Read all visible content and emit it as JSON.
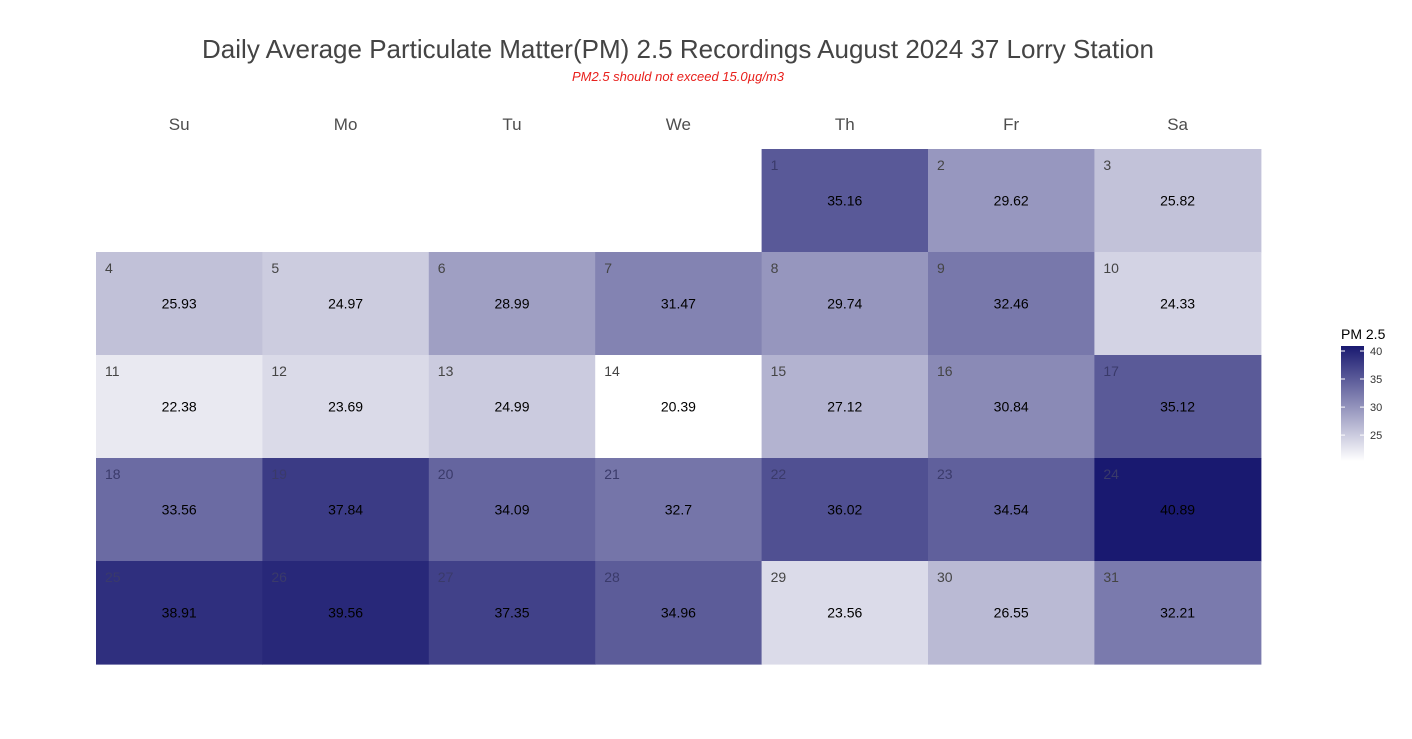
{
  "chart_data": {
    "type": "heatmap",
    "title": "Daily Average Particulate Matter(PM) 2.5 Recordings August 2024 37 Lorry Station",
    "subtitle": "PM2.5 should not exceed 15.0µg/m3",
    "weekdays": [
      "Su",
      "Mo",
      "Tu",
      "We",
      "Th",
      "Fr",
      "Sa"
    ],
    "first_weekday_index": 4,
    "days": [
      1,
      2,
      3,
      4,
      5,
      6,
      7,
      8,
      9,
      10,
      11,
      12,
      13,
      14,
      15,
      16,
      17,
      18,
      19,
      20,
      21,
      22,
      23,
      24,
      25,
      26,
      27,
      28,
      29,
      30,
      31
    ],
    "values": [
      35.16,
      29.62,
      25.82,
      25.93,
      24.97,
      28.99,
      31.47,
      29.74,
      32.46,
      24.33,
      22.38,
      23.69,
      24.99,
      20.39,
      27.12,
      30.84,
      35.12,
      33.56,
      37.84,
      34.09,
      32.7,
      36.02,
      34.54,
      40.89,
      38.91,
      39.56,
      37.35,
      34.96,
      23.56,
      26.55,
      32.21
    ],
    "value_labels": [
      "35.16",
      "29.62",
      "25.82",
      "25.93",
      "24.97",
      "28.99",
      "31.47",
      "29.74",
      "32.46",
      "24.33",
      "22.38",
      "23.69",
      "24.99",
      "20.39",
      "27.12",
      "30.84",
      "35.12",
      "33.56",
      "37.84",
      "34.09",
      "32.7",
      "36.02",
      "34.54",
      "40.89",
      "38.91",
      "39.56",
      "37.35",
      "34.96",
      "23.56",
      "26.55",
      "32.21"
    ],
    "legend": {
      "title": "PM 2.5",
      "placement": "right",
      "ticks": [
        25,
        30,
        35,
        40
      ],
      "range": [
        20.39,
        40.89
      ],
      "low_color": "#ffffff",
      "high_color": "#191970"
    }
  }
}
